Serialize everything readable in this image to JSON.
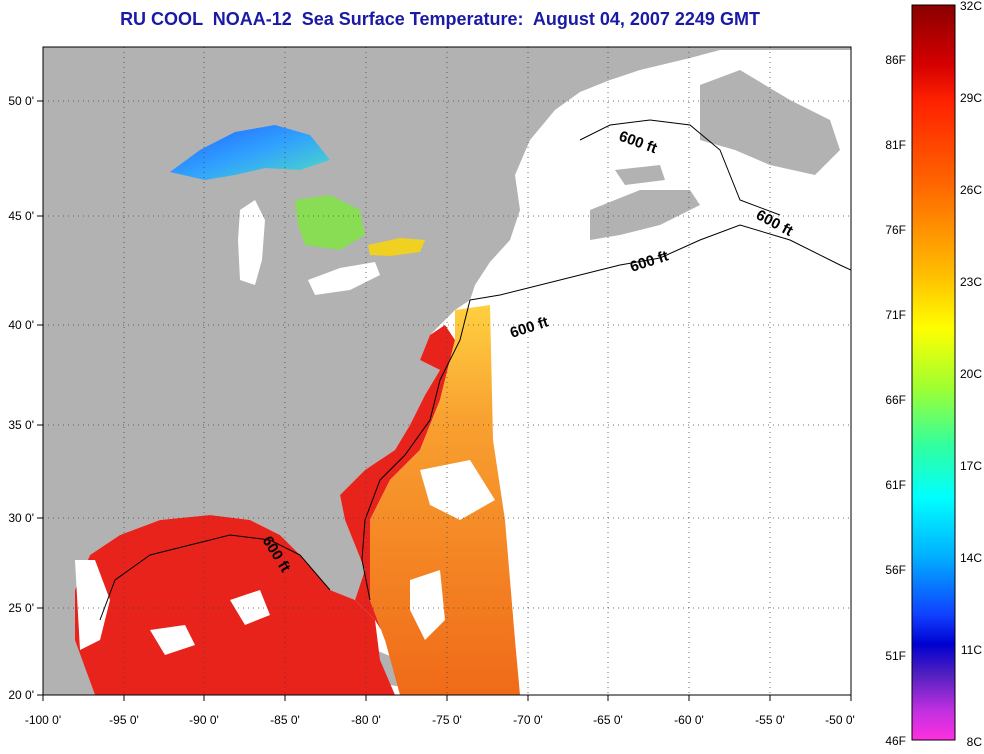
{
  "title": "RU COOL  NOAA-12  Sea Surface Temperature:  August 04, 2007 2249 GMT",
  "map": {
    "lon_ticks": [
      "-100 0'",
      "-95 0'",
      "-90 0'",
      "-85 0'",
      "-80 0'",
      "-75 0'",
      "-70 0'",
      "-65 0'",
      "-60 0'",
      "-55 0'",
      "-50 0'"
    ],
    "lat_ticks": [
      "50 0'",
      "45 0'",
      "40 0'",
      "35 0'",
      "30 0'",
      "25 0'",
      "20 0'"
    ],
    "contour_labels": [
      "600 ft",
      "600 ft",
      "600 ft",
      "600 ft",
      "600 ft"
    ],
    "colors": {
      "land": "#b2b2b2",
      "no_data": "#ffffff",
      "gulf_sst": "#e8231c",
      "offshore_sst": "#f5731c"
    }
  },
  "colorbar": {
    "celsius": [
      "32C",
      "29C",
      "26C",
      "23C",
      "20C",
      "17C",
      "14C",
      "11C",
      "8C"
    ],
    "fahrenheit": [
      "86F",
      "81F",
      "76F",
      "71F",
      "66F",
      "61F",
      "56F",
      "51F",
      "46F"
    ],
    "range_c": [
      8,
      32
    ]
  }
}
